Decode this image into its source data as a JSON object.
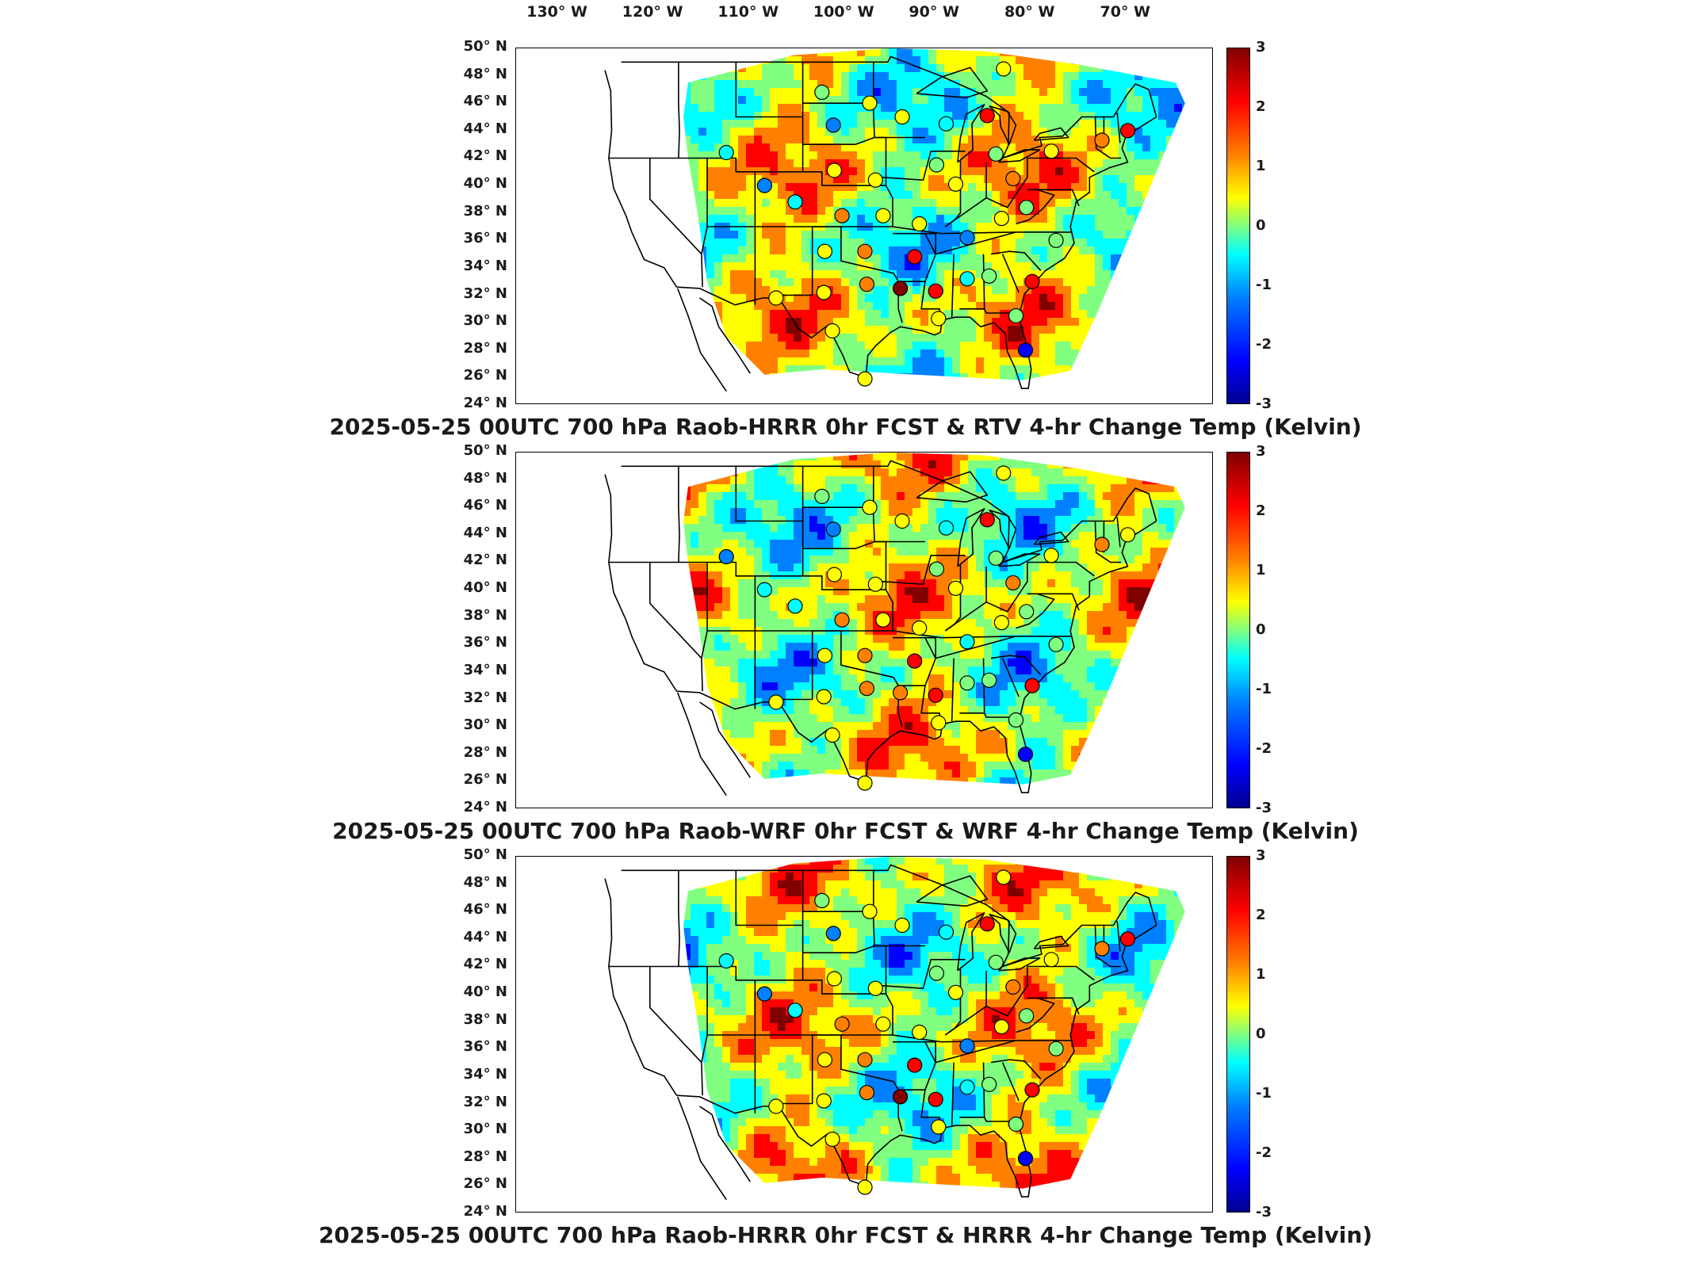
{
  "lon_labels": [
    "130° W",
    "120° W",
    "110° W",
    "100° W",
    "90° W",
    "80° W",
    "70° W"
  ],
  "lat_labels": [
    "50° N",
    "48° N",
    "46° N",
    "44° N",
    "42° N",
    "40° N",
    "38° N",
    "36° N",
    "34° N",
    "32° N",
    "30° N",
    "28° N",
    "26° N",
    "24° N"
  ],
  "colorbar": {
    "min": -3,
    "max": 3,
    "ticks": [
      "3",
      "2",
      "1",
      "0",
      "-1",
      "-2",
      "-3"
    ],
    "colors": [
      "#00008f",
      "#0000ff",
      "#0080ff",
      "#00ffff",
      "#80ff80",
      "#ffff00",
      "#ff8000",
      "#ff0000",
      "#800000"
    ]
  },
  "panels": [
    {
      "title": "2025-05-25 00UTC 700 hPa Raob-HRRR 0hr FCST & RTV 4-hr Change Temp (Kelvin)",
      "stations": [
        {
          "lon": -83.0,
          "lat": 48.5,
          "v": 0.8
        },
        {
          "lon": -102.0,
          "lat": 46.8,
          "v": 0.2
        },
        {
          "lon": -100.8,
          "lat": 44.4,
          "v": -1.5
        },
        {
          "lon": -97.0,
          "lat": 46.0,
          "v": 1.0
        },
        {
          "lon": -93.6,
          "lat": 45.0,
          "v": 0.5
        },
        {
          "lon": -89.0,
          "lat": 44.5,
          "v": -1.0
        },
        {
          "lon": -84.7,
          "lat": 45.1,
          "v": 2.0
        },
        {
          "lon": -83.8,
          "lat": 42.3,
          "v": 0.3
        },
        {
          "lon": -112.0,
          "lat": 42.4,
          "v": -0.5
        },
        {
          "lon": -108.0,
          "lat": 40.0,
          "v": -1.5
        },
        {
          "lon": -100.7,
          "lat": 41.1,
          "v": 0.8
        },
        {
          "lon": -96.4,
          "lat": 40.4,
          "v": 0.6
        },
        {
          "lon": -90.0,
          "lat": 41.5,
          "v": 0.3
        },
        {
          "lon": -88.0,
          "lat": 40.1,
          "v": 0.9
        },
        {
          "lon": -82.0,
          "lat": 40.5,
          "v": 1.5
        },
        {
          "lon": -78.0,
          "lat": 42.5,
          "v": 0.6
        },
        {
          "lon": -72.7,
          "lat": 43.3,
          "v": 1.5
        },
        {
          "lon": -70.0,
          "lat": 44.0,
          "v": 2.0
        },
        {
          "lon": -104.8,
          "lat": 38.8,
          "v": -0.8
        },
        {
          "lon": -99.9,
          "lat": 37.8,
          "v": 1.8
        },
        {
          "lon": -95.6,
          "lat": 37.8,
          "v": 0.5
        },
        {
          "lon": -91.8,
          "lat": 37.2,
          "v": 0.8
        },
        {
          "lon": -86.8,
          "lat": 36.2,
          "v": -1.5
        },
        {
          "lon": -83.2,
          "lat": 37.6,
          "v": 0.4
        },
        {
          "lon": -80.6,
          "lat": 38.4,
          "v": 0.2
        },
        {
          "lon": -77.5,
          "lat": 36.0,
          "v": 0.1
        },
        {
          "lon": -101.7,
          "lat": 35.2,
          "v": 0.6
        },
        {
          "lon": -97.5,
          "lat": 35.2,
          "v": 1.5
        },
        {
          "lon": -92.3,
          "lat": 34.8,
          "v": 2.3
        },
        {
          "lon": -86.8,
          "lat": 33.2,
          "v": -0.8
        },
        {
          "lon": -84.5,
          "lat": 33.4,
          "v": 0.3
        },
        {
          "lon": -80.0,
          "lat": 33.0,
          "v": 2.2
        },
        {
          "lon": -106.8,
          "lat": 31.8,
          "v": 0.5
        },
        {
          "lon": -101.8,
          "lat": 32.2,
          "v": 0.4
        },
        {
          "lon": -97.3,
          "lat": 32.8,
          "v": 1.7
        },
        {
          "lon": -93.8,
          "lat": 32.5,
          "v": 2.8
        },
        {
          "lon": -90.1,
          "lat": 32.3,
          "v": 2.6
        },
        {
          "lon": -97.5,
          "lat": 25.9,
          "v": 0.9
        },
        {
          "lon": -100.9,
          "lat": 29.4,
          "v": 0.5
        },
        {
          "lon": -89.8,
          "lat": 30.3,
          "v": 0.5
        },
        {
          "lon": -81.7,
          "lat": 30.5,
          "v": 0.3
        },
        {
          "lon": -80.7,
          "lat": 28.0,
          "v": -2.0
        }
      ]
    },
    {
      "title": "2025-05-25 00UTC 700 hPa Raob-WRF 0hr FCST & WRF 4-hr Change Temp (Kelvin)",
      "stations": [
        {
          "lon": -83.0,
          "lat": 48.5,
          "v": 0.8
        },
        {
          "lon": -102.0,
          "lat": 46.8,
          "v": 0.2
        },
        {
          "lon": -100.8,
          "lat": 44.4,
          "v": -1.5
        },
        {
          "lon": -97.0,
          "lat": 46.0,
          "v": 1.0
        },
        {
          "lon": -93.6,
          "lat": 45.0,
          "v": 0.5
        },
        {
          "lon": -89.0,
          "lat": 44.5,
          "v": -1.0
        },
        {
          "lon": -84.7,
          "lat": 45.1,
          "v": 2.0
        },
        {
          "lon": -83.8,
          "lat": 42.3,
          "v": 0.3
        },
        {
          "lon": -112.0,
          "lat": 42.4,
          "v": -1.2
        },
        {
          "lon": -108.0,
          "lat": 40.0,
          "v": -0.5
        },
        {
          "lon": -100.7,
          "lat": 41.1,
          "v": 0.8
        },
        {
          "lon": -96.4,
          "lat": 40.4,
          "v": 0.6
        },
        {
          "lon": -90.0,
          "lat": 41.5,
          "v": 0.3
        },
        {
          "lon": -88.0,
          "lat": 40.1,
          "v": 0.9
        },
        {
          "lon": -82.0,
          "lat": 40.5,
          "v": 1.5
        },
        {
          "lon": -78.0,
          "lat": 42.5,
          "v": 0.6
        },
        {
          "lon": -72.7,
          "lat": 43.3,
          "v": 1.5
        },
        {
          "lon": -70.0,
          "lat": 44.0,
          "v": 0.8
        },
        {
          "lon": -104.8,
          "lat": 38.8,
          "v": -0.8
        },
        {
          "lon": -99.9,
          "lat": 37.8,
          "v": 1.8
        },
        {
          "lon": -95.6,
          "lat": 37.8,
          "v": 0.5
        },
        {
          "lon": -91.8,
          "lat": 37.2,
          "v": 0.8
        },
        {
          "lon": -86.8,
          "lat": 36.2,
          "v": -0.9
        },
        {
          "lon": -83.2,
          "lat": 37.6,
          "v": 0.4
        },
        {
          "lon": -80.6,
          "lat": 38.4,
          "v": 0.2
        },
        {
          "lon": -77.5,
          "lat": 36.0,
          "v": 0.1
        },
        {
          "lon": -101.7,
          "lat": 35.2,
          "v": 0.6
        },
        {
          "lon": -97.5,
          "lat": 35.2,
          "v": 1.5
        },
        {
          "lon": -92.3,
          "lat": 34.8,
          "v": 2.5
        },
        {
          "lon": -86.8,
          "lat": 33.2,
          "v": 0.0
        },
        {
          "lon": -84.5,
          "lat": 33.4,
          "v": 0.3
        },
        {
          "lon": -80.0,
          "lat": 33.0,
          "v": 2.2
        },
        {
          "lon": -106.8,
          "lat": 31.8,
          "v": 0.5
        },
        {
          "lon": -101.8,
          "lat": 32.2,
          "v": 0.4
        },
        {
          "lon": -97.3,
          "lat": 32.8,
          "v": 1.7
        },
        {
          "lon": -93.8,
          "lat": 32.5,
          "v": 1.6
        },
        {
          "lon": -90.1,
          "lat": 32.3,
          "v": 2.6
        },
        {
          "lon": -97.5,
          "lat": 25.9,
          "v": 0.9
        },
        {
          "lon": -100.9,
          "lat": 29.4,
          "v": 0.5
        },
        {
          "lon": -89.8,
          "lat": 30.3,
          "v": 0.5
        },
        {
          "lon": -81.7,
          "lat": 30.5,
          "v": 0.3
        },
        {
          "lon": -80.7,
          "lat": 28.0,
          "v": -2.0
        }
      ]
    },
    {
      "title": "2025-05-25 00UTC 700 hPa Raob-HRRR 0hr FCST & HRRR 4-hr Change Temp (Kelvin)",
      "stations": [
        {
          "lon": -83.0,
          "lat": 48.5,
          "v": 0.8
        },
        {
          "lon": -102.0,
          "lat": 46.8,
          "v": 0.2
        },
        {
          "lon": -100.8,
          "lat": 44.4,
          "v": -1.5
        },
        {
          "lon": -97.0,
          "lat": 46.0,
          "v": 1.0
        },
        {
          "lon": -93.6,
          "lat": 45.0,
          "v": 0.5
        },
        {
          "lon": -89.0,
          "lat": 44.5,
          "v": -1.0
        },
        {
          "lon": -84.7,
          "lat": 45.1,
          "v": 2.0
        },
        {
          "lon": -83.8,
          "lat": 42.3,
          "v": 0.3
        },
        {
          "lon": -112.0,
          "lat": 42.4,
          "v": -0.5
        },
        {
          "lon": -108.0,
          "lat": 40.0,
          "v": -1.5
        },
        {
          "lon": -100.7,
          "lat": 41.1,
          "v": 0.8
        },
        {
          "lon": -96.4,
          "lat": 40.4,
          "v": 0.6
        },
        {
          "lon": -90.0,
          "lat": 41.5,
          "v": 0.3
        },
        {
          "lon": -88.0,
          "lat": 40.1,
          "v": 0.9
        },
        {
          "lon": -82.0,
          "lat": 40.5,
          "v": 1.5
        },
        {
          "lon": -78.0,
          "lat": 42.5,
          "v": 0.6
        },
        {
          "lon": -72.7,
          "lat": 43.3,
          "v": 1.5
        },
        {
          "lon": -70.0,
          "lat": 44.0,
          "v": 2.0
        },
        {
          "lon": -104.8,
          "lat": 38.8,
          "v": -0.8
        },
        {
          "lon": -99.9,
          "lat": 37.8,
          "v": 1.8
        },
        {
          "lon": -95.6,
          "lat": 37.8,
          "v": 0.5
        },
        {
          "lon": -91.8,
          "lat": 37.2,
          "v": 0.8
        },
        {
          "lon": -86.8,
          "lat": 36.2,
          "v": -1.5
        },
        {
          "lon": -83.2,
          "lat": 37.6,
          "v": 0.4
        },
        {
          "lon": -80.6,
          "lat": 38.4,
          "v": 0.2
        },
        {
          "lon": -77.5,
          "lat": 36.0,
          "v": 0.1
        },
        {
          "lon": -101.7,
          "lat": 35.2,
          "v": 0.6
        },
        {
          "lon": -97.5,
          "lat": 35.2,
          "v": 1.5
        },
        {
          "lon": -92.3,
          "lat": 34.8,
          "v": 2.3
        },
        {
          "lon": -86.8,
          "lat": 33.2,
          "v": -0.8
        },
        {
          "lon": -84.5,
          "lat": 33.4,
          "v": 0.3
        },
        {
          "lon": -80.0,
          "lat": 33.0,
          "v": 2.2
        },
        {
          "lon": -106.8,
          "lat": 31.8,
          "v": 0.5
        },
        {
          "lon": -101.8,
          "lat": 32.2,
          "v": 0.4
        },
        {
          "lon": -97.3,
          "lat": 32.8,
          "v": 1.7
        },
        {
          "lon": -93.8,
          "lat": 32.5,
          "v": 2.8
        },
        {
          "lon": -90.1,
          "lat": 32.3,
          "v": 2.6
        },
        {
          "lon": -97.5,
          "lat": 25.9,
          "v": 0.9
        },
        {
          "lon": -100.9,
          "lat": 29.4,
          "v": 0.5
        },
        {
          "lon": -89.8,
          "lat": 30.3,
          "v": 0.5
        },
        {
          "lon": -81.7,
          "lat": 30.5,
          "v": 0.3
        },
        {
          "lon": -80.7,
          "lat": 28.0,
          "v": -2.0
        }
      ]
    }
  ]
}
